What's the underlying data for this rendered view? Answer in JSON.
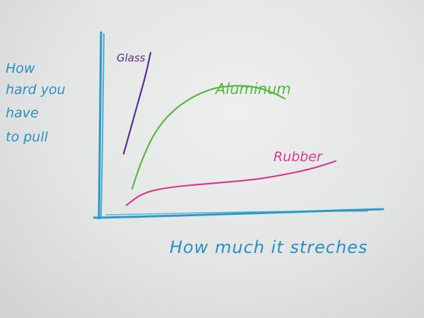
{
  "colors": {
    "axis": "#2a9ac8",
    "glass": "#5a2d8e",
    "aluminum": "#5bb543",
    "rubber": "#d63a8a",
    "ink_blue": "#2a8fc0"
  },
  "chart_data": {
    "type": "line",
    "title": "",
    "xlabel": "How much it streches",
    "ylabel": [
      "How",
      "hard you",
      "have",
      "to pull"
    ],
    "ticks": false,
    "grid": false,
    "legend": "inline labels at end of each line",
    "xlim": [
      0,
      100
    ],
    "ylim": [
      0,
      100
    ],
    "series": [
      {
        "name": "Glass",
        "color": "#5a2d8e",
        "points": [
          [
            8,
            34
          ],
          [
            10,
            45
          ],
          [
            12,
            56
          ],
          [
            14,
            67
          ],
          [
            16,
            78
          ],
          [
            17.5,
            89
          ]
        ]
      },
      {
        "name": "Aluminum",
        "color": "#5bb543",
        "points": [
          [
            11,
            15
          ],
          [
            14,
            29
          ],
          [
            18,
            43
          ],
          [
            23,
            54
          ],
          [
            30,
            63
          ],
          [
            38,
            69
          ],
          [
            45,
            71
          ],
          [
            53,
            71
          ],
          [
            60,
            68
          ],
          [
            65,
            64
          ]
        ]
      },
      {
        "name": "Rubber",
        "color": "#d63a8a",
        "points": [
          [
            9,
            6
          ],
          [
            15,
            13
          ],
          [
            25,
            16
          ],
          [
            40,
            18
          ],
          [
            55,
            20
          ],
          [
            66,
            23
          ],
          [
            75,
            26
          ],
          [
            83,
            30
          ]
        ]
      }
    ]
  }
}
